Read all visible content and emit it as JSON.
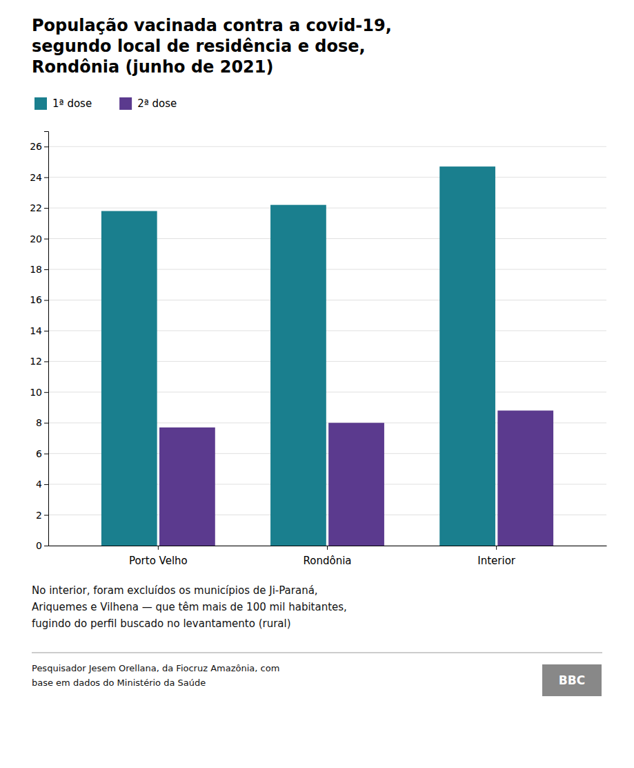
{
  "chart_data": {
    "type": "bar",
    "title": "População vacinada contra a covid-19,\nsegundo local de residência e dose,\nRondônia (junho de 2021)",
    "categories": [
      "Porto Velho",
      "Rondônia",
      "Interior"
    ],
    "series": [
      {
        "name": "1ª dose",
        "color": "#1a7f8e",
        "values": [
          21.8,
          22.2,
          24.7
        ]
      },
      {
        "name": "2ª dose",
        "color": "#5b3a8e",
        "values": [
          7.7,
          8.0,
          8.8
        ]
      }
    ],
    "ylim": [
      0,
      27
    ],
    "yticks": [
      0,
      2,
      4,
      6,
      8,
      10,
      12,
      14,
      16,
      18,
      20,
      22,
      24,
      26
    ],
    "grid": true,
    "legend": "top",
    "footnote": "No interior, foram excluídos os municípios de Ji-Paraná,\nAriquemes e Vilhena — que têm mais de 100 mil habitantes,\nfugindo do perfil buscado no levantamento (rural)",
    "source": "Pesquisador Jesem Orellana, da Fiocruz Amazônia, com\nbase em dados do Ministério da Saúde",
    "credit": "BBC"
  }
}
